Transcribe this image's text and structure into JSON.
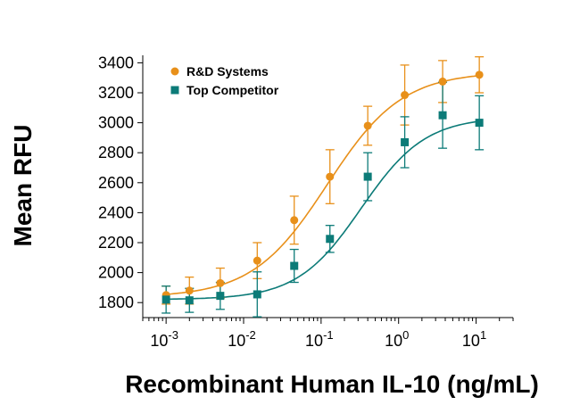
{
  "chart_data": {
    "type": "scatter",
    "title": "",
    "xlabel": "Recombinant Human IL-10 (ng/mL)",
    "ylabel": "Mean RFU",
    "x_scale": "log",
    "xlim": [
      0.0005,
      30
    ],
    "ylim": [
      1700,
      3450
    ],
    "y_ticks": [
      1800,
      2000,
      2200,
      2400,
      2600,
      2800,
      3000,
      3200,
      3400
    ],
    "x_ticks": [
      {
        "base": "10",
        "exp": "-3",
        "value": 0.001
      },
      {
        "base": "10",
        "exp": "-2",
        "value": 0.01
      },
      {
        "base": "10",
        "exp": "-1",
        "value": 0.1
      },
      {
        "base": "10",
        "exp": "0",
        "value": 1
      },
      {
        "base": "10",
        "exp": "1",
        "value": 10
      }
    ],
    "grid": false,
    "legend_position": "top-left",
    "series": [
      {
        "name": "R&D Systems",
        "color": "#e8901a",
        "marker": "circle",
        "x": [
          0.001,
          0.002,
          0.005,
          0.015,
          0.045,
          0.13,
          0.4,
          1.2,
          3.7,
          11
        ],
        "y": [
          1850,
          1880,
          1930,
          2080,
          2350,
          2640,
          2980,
          3185,
          3275,
          3320
        ],
        "error": [
          60,
          90,
          100,
          120,
          160,
          180,
          130,
          200,
          140,
          120
        ],
        "fit": {
          "bottom": 1835,
          "top": 3340,
          "ec50": 0.12,
          "hill": 0.9
        }
      },
      {
        "name": "Top Competitor",
        "color": "#0c7b78",
        "marker": "square",
        "x": [
          0.001,
          0.002,
          0.005,
          0.015,
          0.045,
          0.13,
          0.4,
          1.2,
          3.7,
          11
        ],
        "y": [
          1820,
          1815,
          1845,
          1855,
          2045,
          2225,
          2640,
          2870,
          3050,
          3000
        ],
        "error": [
          90,
          80,
          90,
          150,
          110,
          90,
          160,
          170,
          220,
          180
        ],
        "fit": {
          "bottom": 1820,
          "top": 3040,
          "ec50": 0.33,
          "hill": 1.05
        }
      }
    ]
  }
}
